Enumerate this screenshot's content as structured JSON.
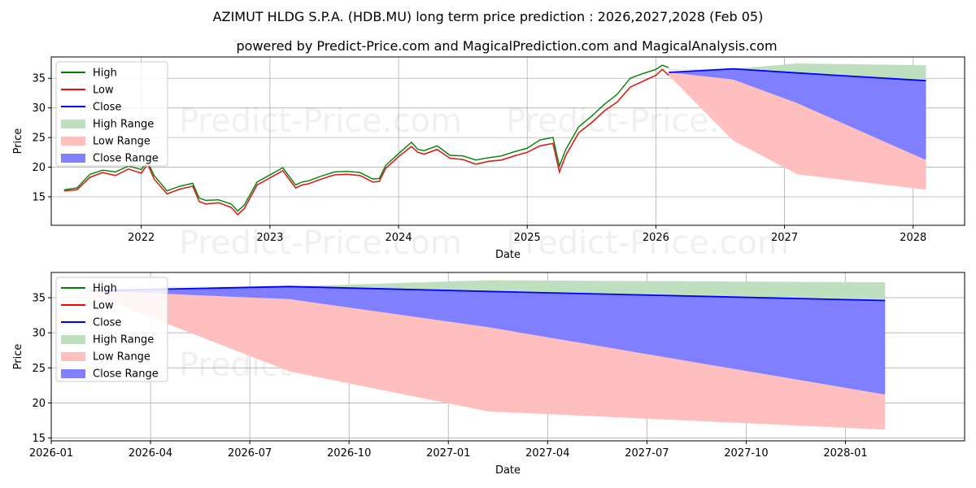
{
  "header": {
    "title": "AZIMUT HLDG S.P.A. (HDB.MU) long term price prediction : 2026,2027,2028 (Feb 05)",
    "subtitle": "powered by Predict-Price.com and MagicalPrediction.com and MagicalAnalysis.com"
  },
  "watermark": "Predict-Price.com",
  "colors": {
    "high": "#008000",
    "low": "#ff0000",
    "history": "#d62020",
    "close": "#0000ff",
    "high_range": "#bfe0bf",
    "low_range": "#ffbfbf",
    "close_range": "#7f7fff",
    "grid": "#b0b0b0"
  },
  "chart_data": [
    {
      "type": "line",
      "name": "long-term-overview",
      "xlabel": "Date",
      "ylabel": "Price",
      "xlim": [
        2021.3,
        2028.4
      ],
      "ylim": [
        10.2,
        38.6
      ],
      "grid": true,
      "legend_position": "top-left",
      "xticks": [
        {
          "v": 2022,
          "label": "2022"
        },
        {
          "v": 2023,
          "label": "2023"
        },
        {
          "v": 2024,
          "label": "2024"
        },
        {
          "v": 2025,
          "label": "2025"
        },
        {
          "v": 2026,
          "label": "2026"
        },
        {
          "v": 2027,
          "label": "2027"
        },
        {
          "v": 2028,
          "label": "2028"
        }
      ],
      "yticks": [
        {
          "v": 15,
          "label": "15"
        },
        {
          "v": 20,
          "label": "20"
        },
        {
          "v": 25,
          "label": "25"
        },
        {
          "v": 30,
          "label": "30"
        },
        {
          "v": 35,
          "label": "35"
        }
      ],
      "legend": [
        "High",
        "Low",
        "Close",
        "High Range",
        "Low Range",
        "Close Range"
      ],
      "history": {
        "x": [
          2021.4,
          2021.5,
          2021.6,
          2021.7,
          2021.8,
          2021.9,
          2022.0,
          2022.05,
          2022.1,
          2022.2,
          2022.3,
          2022.4,
          2022.45,
          2022.5,
          2022.6,
          2022.7,
          2022.75,
          2022.8,
          2022.9,
          2023.0,
          2023.1,
          2023.2,
          2023.25,
          2023.3,
          2023.4,
          2023.5,
          2023.6,
          2023.7,
          2023.8,
          2023.85,
          2023.9,
          2024.0,
          2024.1,
          2024.15,
          2024.2,
          2024.3,
          2024.4,
          2024.5,
          2024.6,
          2024.7,
          2024.8,
          2024.9,
          2025.0,
          2025.1,
          2025.2,
          2025.25,
          2025.3,
          2025.4,
          2025.5,
          2025.6,
          2025.7,
          2025.8,
          2025.9,
          2026.0,
          2026.05,
          2026.1
        ],
        "low": [
          16.0,
          16.2,
          18.3,
          19.1,
          18.6,
          19.7,
          19.0,
          20.5,
          18.0,
          15.5,
          16.3,
          16.8,
          14.2,
          13.8,
          14.0,
          13.2,
          12.0,
          13.0,
          17.0,
          18.2,
          19.4,
          16.5,
          17.0,
          17.2,
          18.0,
          18.7,
          18.8,
          18.6,
          17.5,
          17.6,
          19.8,
          21.8,
          23.5,
          22.5,
          22.2,
          23.0,
          21.5,
          21.3,
          20.5,
          21.0,
          21.2,
          21.9,
          22.5,
          23.6,
          24.0,
          19.2,
          22.0,
          25.8,
          27.5,
          29.5,
          31.0,
          33.5,
          34.5,
          35.5,
          36.5,
          35.5
        ],
        "high": [
          16.2,
          16.5,
          18.8,
          19.5,
          19.2,
          20.2,
          19.6,
          20.9,
          18.6,
          16.0,
          16.8,
          17.3,
          14.8,
          14.4,
          14.5,
          13.8,
          12.6,
          13.6,
          17.5,
          18.7,
          19.9,
          17.0,
          17.5,
          17.7,
          18.5,
          19.2,
          19.3,
          19.1,
          18.0,
          18.1,
          20.3,
          22.3,
          24.2,
          23.0,
          22.8,
          23.6,
          22.0,
          21.9,
          21.2,
          21.6,
          21.9,
          22.6,
          23.2,
          24.6,
          25.0,
          20.2,
          23.0,
          26.8,
          28.6,
          30.6,
          32.3,
          35.0,
          35.8,
          36.5,
          37.2,
          36.8
        ]
      },
      "forecast": {
        "x": [
          2026.1,
          2026.6,
          2027.1,
          2028.1
        ],
        "close": [
          36.0,
          36.6,
          35.9,
          34.6
        ],
        "high_range": [
          [
            36.4,
            36.5
          ],
          [
            36.6,
            36.6
          ],
          [
            37.5,
            35.9
          ],
          [
            37.2,
            34.6
          ]
        ],
        "close_range": [
          [
            36.0,
            36.0
          ],
          [
            36.6,
            34.8
          ],
          [
            35.9,
            30.8
          ],
          [
            34.6,
            21.2
          ]
        ],
        "low_range": [
          [
            36.0,
            35.5
          ],
          [
            34.8,
            24.5
          ],
          [
            30.8,
            18.8
          ],
          [
            21.2,
            16.2
          ]
        ]
      }
    },
    {
      "type": "area",
      "name": "forecast-detail",
      "xlabel": "Date",
      "ylabel": "Price",
      "xlim": [
        2026.0,
        2028.3
      ],
      "ylim": [
        14.6,
        38.6
      ],
      "grid": true,
      "legend_position": "top-left",
      "xticks": [
        {
          "v": 2026.0,
          "label": "2026-01"
        },
        {
          "v": 2026.25,
          "label": "2026-04"
        },
        {
          "v": 2026.5,
          "label": "2026-07"
        },
        {
          "v": 2026.75,
          "label": "2026-10"
        },
        {
          "v": 2027.0,
          "label": "2027-01"
        },
        {
          "v": 2027.25,
          "label": "2027-04"
        },
        {
          "v": 2027.5,
          "label": "2027-07"
        },
        {
          "v": 2027.75,
          "label": "2027-10"
        },
        {
          "v": 2028.0,
          "label": "2028-01"
        }
      ],
      "yticks": [
        {
          "v": 15,
          "label": "15"
        },
        {
          "v": 20,
          "label": "20"
        },
        {
          "v": 25,
          "label": "25"
        },
        {
          "v": 30,
          "label": "30"
        },
        {
          "v": 35,
          "label": "35"
        }
      ],
      "legend": [
        "High",
        "Low",
        "Close",
        "High Range",
        "Low Range",
        "Close Range"
      ],
      "forecast": {
        "x": [
          2026.1,
          2026.6,
          2027.1,
          2028.1
        ],
        "close": [
          36.0,
          36.6,
          35.9,
          34.6
        ],
        "high_range": [
          [
            36.4,
            36.5
          ],
          [
            36.6,
            36.6
          ],
          [
            37.5,
            35.9
          ],
          [
            37.2,
            34.6
          ]
        ],
        "close_range": [
          [
            36.0,
            36.0
          ],
          [
            36.6,
            34.8
          ],
          [
            35.9,
            30.8
          ],
          [
            34.6,
            21.2
          ]
        ],
        "low_range": [
          [
            36.0,
            35.5
          ],
          [
            34.8,
            24.5
          ],
          [
            30.8,
            18.8
          ],
          [
            21.2,
            16.2
          ]
        ]
      }
    }
  ]
}
